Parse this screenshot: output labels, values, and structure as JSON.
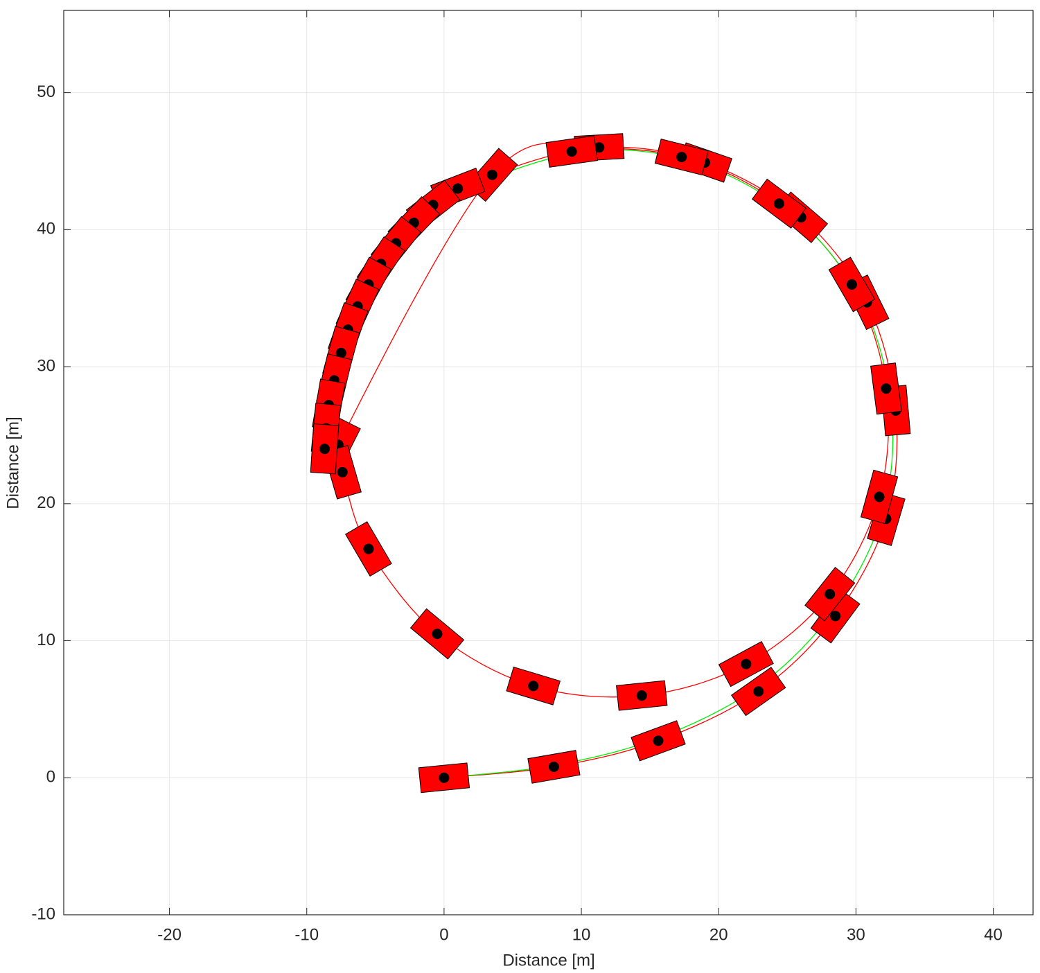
{
  "chart_data": {
    "type": "scatter",
    "xlabel": "Distance [m]",
    "ylabel": "Distance [m]",
    "xlim": [
      -27.7,
      42.9
    ],
    "ylim": [
      -10,
      56
    ],
    "xticks": [
      -20,
      -10,
      0,
      10,
      20,
      30,
      40
    ],
    "yticks": [
      -10,
      0,
      10,
      20,
      30,
      40,
      50
    ],
    "grid": true,
    "box": true,
    "series": [
      {
        "mode": "vehicles",
        "color": "#ff0000",
        "x": [
          0,
          8,
          15.6,
          22.9,
          28.5,
          32.2,
          32.9,
          30.8,
          26.0,
          19.0,
          11.3,
          3.5,
          -7.7,
          -7.4,
          -5.5,
          -0.5,
          6.5,
          14.4,
          22.0,
          28.1,
          31.7,
          32.2,
          29.7,
          24.4,
          17.3,
          9.3,
          1.0,
          -0.8,
          -2.2,
          -3.5,
          -4.6,
          -5.5,
          -6.3,
          -7.0,
          -7.5,
          -8.0,
          -8.4,
          -8.6,
          -8.7
        ],
        "y": [
          0,
          0.8,
          2.7,
          6.3,
          11.8,
          18.9,
          26.8,
          34.7,
          40.9,
          44.9,
          46.0,
          44.0,
          24.3,
          22.3,
          16.7,
          10.5,
          6.7,
          6.0,
          8.3,
          13.4,
          20.5,
          28.4,
          36.0,
          41.9,
          45.3,
          45.7,
          43.0,
          41.8,
          40.5,
          39.0,
          37.5,
          36.0,
          34.4,
          32.7,
          31.0,
          29.0,
          27.2,
          25.5,
          24.0
        ]
      },
      {
        "mode": "line",
        "color": "#00ee00",
        "x": [
          0,
          8,
          15.6,
          22.8,
          28.3,
          31.9,
          32.6,
          30.5,
          25.8,
          18.9,
          11.3,
          3.6,
          -2.2,
          -5.5,
          -7.5,
          -8.2
        ],
        "y": [
          0,
          0.9,
          2.9,
          6.6,
          12.1,
          19.1,
          26.8,
          34.6,
          40.7,
          44.7,
          45.8,
          43.8,
          40.4,
          35.9,
          30.9,
          26.0
        ]
      }
    ]
  }
}
